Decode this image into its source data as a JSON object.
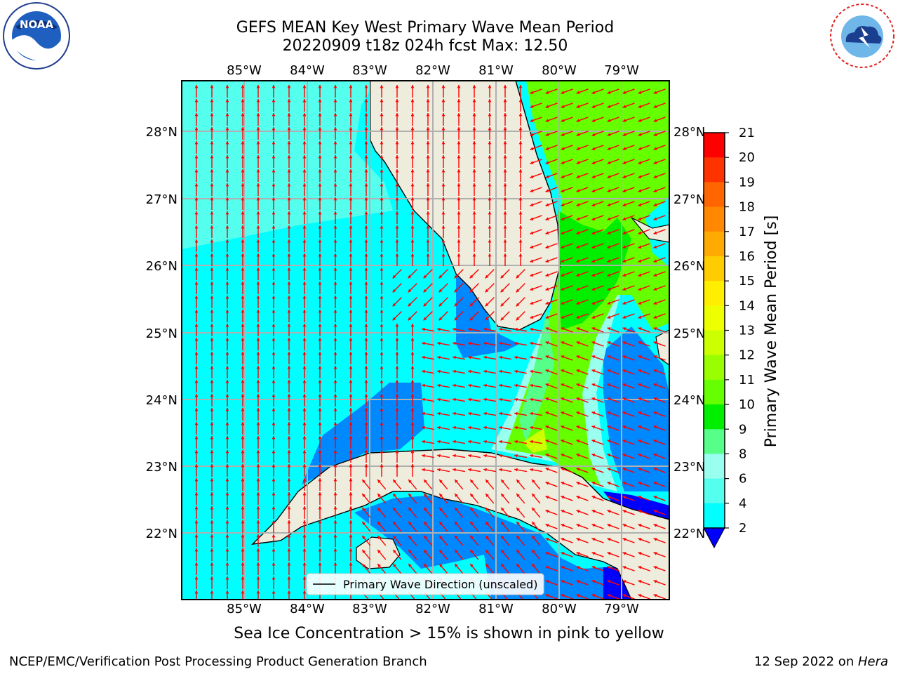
{
  "header": {
    "title_line1": "GEFS MEAN Key West Primary Wave Mean Period",
    "title_line2": "20220909 t18z 024h fcst   Max: 12.50"
  },
  "logos": {
    "left": {
      "icon": "noaa-logo-icon",
      "text": "NOAA",
      "ring_text": "NATIONAL OCEANIC AND ATMOSPHERIC ADMINISTRATION · U.S. DEPARTMENT OF COMMERCE"
    },
    "right": {
      "icon": "nws-logo-icon",
      "ring_text": "NATIONAL WEATHER SERVICE"
    }
  },
  "map": {
    "lon_labels": [
      "85°W",
      "84°W",
      "83°W",
      "82°W",
      "81°W",
      "80°W",
      "79°W"
    ],
    "lat_labels": [
      "28°N",
      "27°N",
      "26°N",
      "25°N",
      "24°N",
      "23°N",
      "22°N"
    ],
    "legend_text": "Primary Wave Direction (unscaled)",
    "arrow_color": "#ff0000",
    "land_color": "#eeecdc"
  },
  "colorbar": {
    "label": "Primary Wave Mean Period [s]",
    "ticks": [
      "21",
      "20",
      "19",
      "18",
      "17",
      "16",
      "15",
      "14",
      "13",
      "12",
      "11",
      "10",
      "9",
      "8",
      "6",
      "4",
      "2"
    ],
    "colors": [
      "#ff0000",
      "#ff3300",
      "#ff6600",
      "#ff8800",
      "#ffaa00",
      "#ffcc00",
      "#ffee00",
      "#eeff00",
      "#ccff00",
      "#99ff00",
      "#66ff00",
      "#00ee00",
      "#55ff88",
      "#99ffee",
      "#55ffee",
      "#00ffff",
      "#0088ff",
      "#0000ff"
    ]
  },
  "note": "Sea Ice Concentration > 15% is shown in pink to yellow",
  "footer": {
    "left": "NCEP/EMC/Verification Post Processing Product Generation Branch",
    "right_date": "12 Sep 2022 on ",
    "right_host": "Hera"
  }
}
